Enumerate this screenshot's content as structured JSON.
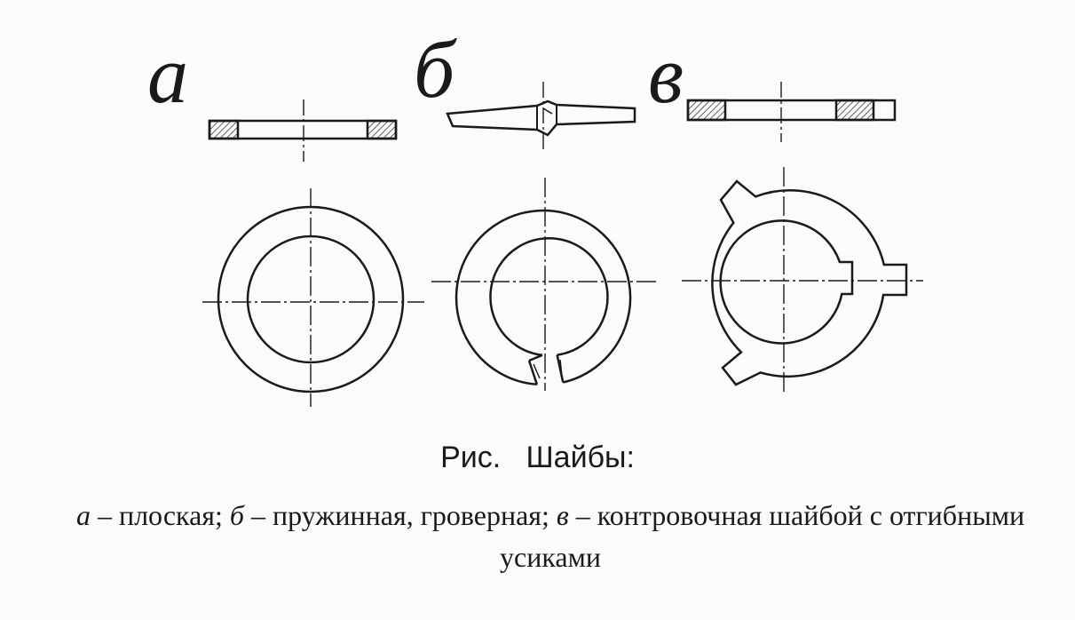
{
  "figure": {
    "labels": {
      "a": "а",
      "b": "б",
      "v": "в"
    },
    "caption": {
      "title": "Рис.   Шайбы:",
      "a_letter": "а",
      "a_text": " – плоская; ",
      "b_letter": "б",
      "b_text": " – пружинная, гроверная; ",
      "v_letter": "в",
      "v_text": " – контровочная шайбой с отгибными усиками"
    }
  }
}
